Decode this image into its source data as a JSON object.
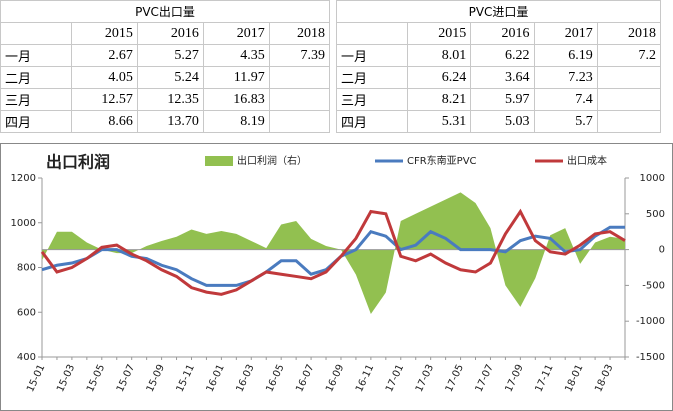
{
  "tables": [
    {
      "title": "PVC出口量",
      "columns": [
        "2015",
        "2016",
        "2017",
        "2018"
      ],
      "rows": [
        {
          "label": "一月",
          "cells": [
            "2.67",
            "5.27",
            "4.35",
            "7.39"
          ]
        },
        {
          "label": "二月",
          "cells": [
            "4.05",
            "5.24",
            "11.97"
          ]
        },
        {
          "label": "三月",
          "cells": [
            "12.57",
            "12.35",
            "16.83"
          ]
        },
        {
          "label": "四月",
          "cells": [
            "8.66",
            "13.70",
            "8.19"
          ]
        }
      ]
    },
    {
      "title": "PVC进口量",
      "columns": [
        "2015",
        "2016",
        "2017",
        "2018"
      ],
      "rows": [
        {
          "label": "一月",
          "cells": [
            "8.01",
            "6.22",
            "6.19",
            "7.2"
          ]
        },
        {
          "label": "二月",
          "cells": [
            "6.24",
            "3.64",
            "7.23"
          ]
        },
        {
          "label": "三月",
          "cells": [
            "8.21",
            "5.97",
            "7.4"
          ]
        },
        {
          "label": "四月",
          "cells": [
            "5.31",
            "5.03",
            "5.7"
          ]
        }
      ]
    }
  ],
  "chart_data": {
    "type": "line",
    "title": "出口利润",
    "categories": [
      "15-01",
      null,
      "15-03",
      null,
      "15-05",
      null,
      "15-07",
      null,
      "15-09",
      null,
      "15-11",
      null,
      "16-01",
      null,
      "16-03",
      null,
      "16-05",
      null,
      "16-07",
      null,
      "16-09",
      null,
      "16-11",
      null,
      "17-01",
      null,
      "17-03",
      null,
      "17-05",
      null,
      "17-07",
      null,
      "17-09",
      null,
      "17-11",
      null,
      "18-01",
      null,
      "18-03",
      null
    ],
    "ylim": [
      400,
      1200
    ],
    "yticks": [
      400,
      600,
      800,
      1000,
      1200
    ],
    "y2lim": [
      -1500,
      1000
    ],
    "y2ticks": [
      -1500,
      -1000,
      -500,
      0,
      500,
      1000
    ],
    "legend": "top",
    "series": [
      {
        "name": "出口利润（右）",
        "color": "#92c050",
        "axis": "y2",
        "kind": "area",
        "values": [
          -150,
          250,
          250,
          100,
          0,
          -50,
          -50,
          50,
          120,
          180,
          280,
          220,
          260,
          220,
          120,
          20,
          350,
          400,
          150,
          50,
          0,
          -350,
          -900,
          -600,
          400,
          500,
          600,
          700,
          800,
          650,
          300,
          -500,
          -800,
          -400,
          200,
          300,
          -200,
          100,
          180,
          150
        ]
      },
      {
        "name": "CFR东南亚PVC",
        "color": "#4a7bbf",
        "values": [
          790,
          810,
          820,
          840,
          880,
          880,
          850,
          840,
          810,
          790,
          750,
          720,
          720,
          720,
          740,
          780,
          830,
          830,
          770,
          790,
          850,
          880,
          960,
          940,
          880,
          900,
          960,
          930,
          880,
          880,
          880,
          870,
          920,
          940,
          930,
          870,
          880,
          940,
          980,
          980
        ]
      },
      {
        "name": "出口成本",
        "color": "#c0393b",
        "values": [
          870,
          780,
          800,
          840,
          890,
          900,
          860,
          830,
          790,
          760,
          710,
          690,
          680,
          700,
          740,
          780,
          770,
          760,
          750,
          780,
          850,
          930,
          1050,
          1040,
          850,
          830,
          860,
          820,
          790,
          780,
          820,
          950,
          1050,
          920,
          870,
          860,
          900,
          950,
          960,
          920
        ]
      }
    ]
  }
}
